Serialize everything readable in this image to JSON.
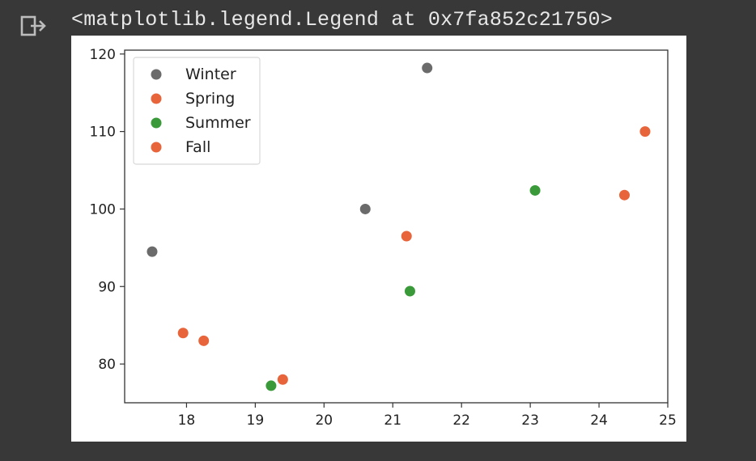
{
  "cell_output": {
    "icon": "output-redirect-icon",
    "text": "<matplotlib.legend.Legend at 0x7fa852c21750>"
  },
  "chart_data": {
    "type": "scatter",
    "xlim": [
      17.1,
      25.0
    ],
    "ylim": [
      75.0,
      120.5
    ],
    "x_ticks": [
      18,
      19,
      20,
      21,
      22,
      23,
      24,
      25
    ],
    "y_ticks": [
      80,
      90,
      100,
      110,
      120
    ],
    "grid": false,
    "legend_position": "top-left",
    "series": [
      {
        "name": "Winter",
        "color": "#6b6b6b",
        "points": [
          [
            17.5,
            94.5
          ],
          [
            20.6,
            100.0
          ],
          [
            21.5,
            118.2
          ]
        ]
      },
      {
        "name": "Spring",
        "color": "#e8643a",
        "points": [
          [
            17.95,
            84.0
          ],
          [
            18.25,
            83.0
          ],
          [
            21.2,
            96.5
          ]
        ]
      },
      {
        "name": "Summer",
        "color": "#3a9a3a",
        "points": [
          [
            19.23,
            77.2
          ],
          [
            21.25,
            89.4
          ],
          [
            23.07,
            102.4
          ]
        ]
      },
      {
        "name": "Fall",
        "color": "#e8643a",
        "points": [
          [
            19.4,
            78.0
          ],
          [
            24.37,
            101.8
          ],
          [
            24.67,
            110.0
          ]
        ]
      }
    ]
  }
}
